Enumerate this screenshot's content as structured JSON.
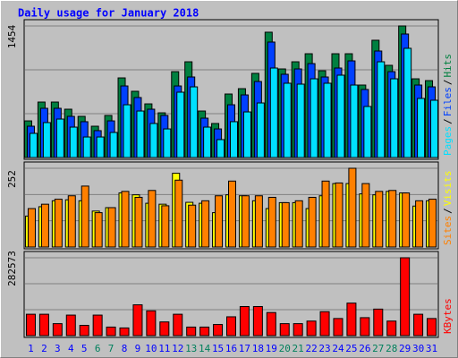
{
  "chart_data": [
    {
      "type": "bar",
      "title": "Daily usage for January 2018",
      "title_color": "#0000ff",
      "legend_separator": "/",
      "ylim": [
        0,
        1454
      ],
      "yticks": [
        1454
      ],
      "series": [
        {
          "name": "Hits",
          "color": "#008040",
          "values": [
            405,
            613,
            613,
            534,
            455,
            346,
            465,
            880,
            732,
            593,
            494,
            949,
            1058,
            514,
            376,
            702,
            761,
            930,
            1385,
            979,
            1058,
            1147,
            959,
            1147,
            1147,
            801,
            1296,
            1019,
            1454,
            870,
            850
          ]
        },
        {
          "name": "Files",
          "color": "#0040ff",
          "values": [
            346,
            544,
            544,
            455,
            396,
            297,
            405,
            791,
            663,
            534,
            465,
            791,
            890,
            435,
            316,
            583,
            692,
            840,
            1276,
            920,
            979,
            1038,
            890,
            989,
            1068,
            752,
            1177,
            949,
            1365,
            801,
            781
          ]
        },
        {
          "name": "Pages",
          "color": "#00e0ff",
          "values": [
            267,
            386,
            425,
            336,
            227,
            227,
            277,
            583,
            514,
            376,
            316,
            722,
            781,
            336,
            198,
            396,
            504,
            603,
            989,
            821,
            811,
            870,
            821,
            910,
            801,
            564,
            1058,
            870,
            1207,
            653,
            633
          ]
        }
      ]
    },
    {
      "type": "bar",
      "ylim": [
        0,
        252
      ],
      "yticks": [
        252
      ],
      "series": [
        {
          "name": "Visits",
          "color": "#ffff00",
          "values": [
            99,
            129,
            148,
            151,
            148,
            115,
            126,
            173,
            167,
            140,
            137,
            236,
            143,
            140,
            110,
            167,
            164,
            148,
            123,
            142,
            142,
            123,
            164,
            203,
            203,
            170,
            167,
            178,
            173,
            131,
            148
          ]
        },
        {
          "name": "Sites",
          "color": "#ff8000",
          "values": [
            123,
            137,
            153,
            164,
            195,
            110,
            126,
            178,
            159,
            181,
            132,
            214,
            134,
            148,
            164,
            211,
            164,
            164,
            159,
            142,
            148,
            159,
            211,
            205,
            252,
            203,
            178,
            181,
            173,
            148,
            153
          ]
        }
      ]
    },
    {
      "type": "bar",
      "ylim": [
        0,
        282573
      ],
      "yticks": [
        282573
      ],
      "categories": [
        "1",
        "2",
        "3",
        "4",
        "5",
        "6",
        "7",
        "8",
        "9",
        "10",
        "11",
        "12",
        "13",
        "14",
        "15",
        "16",
        "17",
        "18",
        "19",
        "20",
        "21",
        "22",
        "23",
        "24",
        "25",
        "26",
        "27",
        "28",
        "29",
        "30",
        "31"
      ],
      "category_colors": [
        "#0000ff",
        "#0000ff",
        "#0000ff",
        "#0000ff",
        "#0000ff",
        "#00805c",
        "#00805c",
        "#0000ff",
        "#0000ff",
        "#0000ff",
        "#0000ff",
        "#0000ff",
        "#00805c",
        "#00805c",
        "#0000ff",
        "#0000ff",
        "#0000ff",
        "#0000ff",
        "#0000ff",
        "#00805c",
        "#00805c",
        "#0000ff",
        "#0000ff",
        "#0000ff",
        "#0000ff",
        "#0000ff",
        "#00805c",
        "#00805c",
        "#0000ff",
        "#0000ff",
        "#0000ff"
      ],
      "series": [
        {
          "name": "KBytes",
          "color": "#ff0000",
          "values": [
            77600,
            77600,
            43500,
            74500,
            37300,
            74500,
            31000,
            27900,
            111800,
            90000,
            49700,
            77600,
            31000,
            31000,
            40400,
            68300,
            105600,
            105600,
            83800,
            43500,
            43500,
            52800,
            86900,
            62100,
            118000,
            65200,
            96300,
            52800,
            282573,
            77600,
            62100
          ]
        }
      ]
    }
  ]
}
